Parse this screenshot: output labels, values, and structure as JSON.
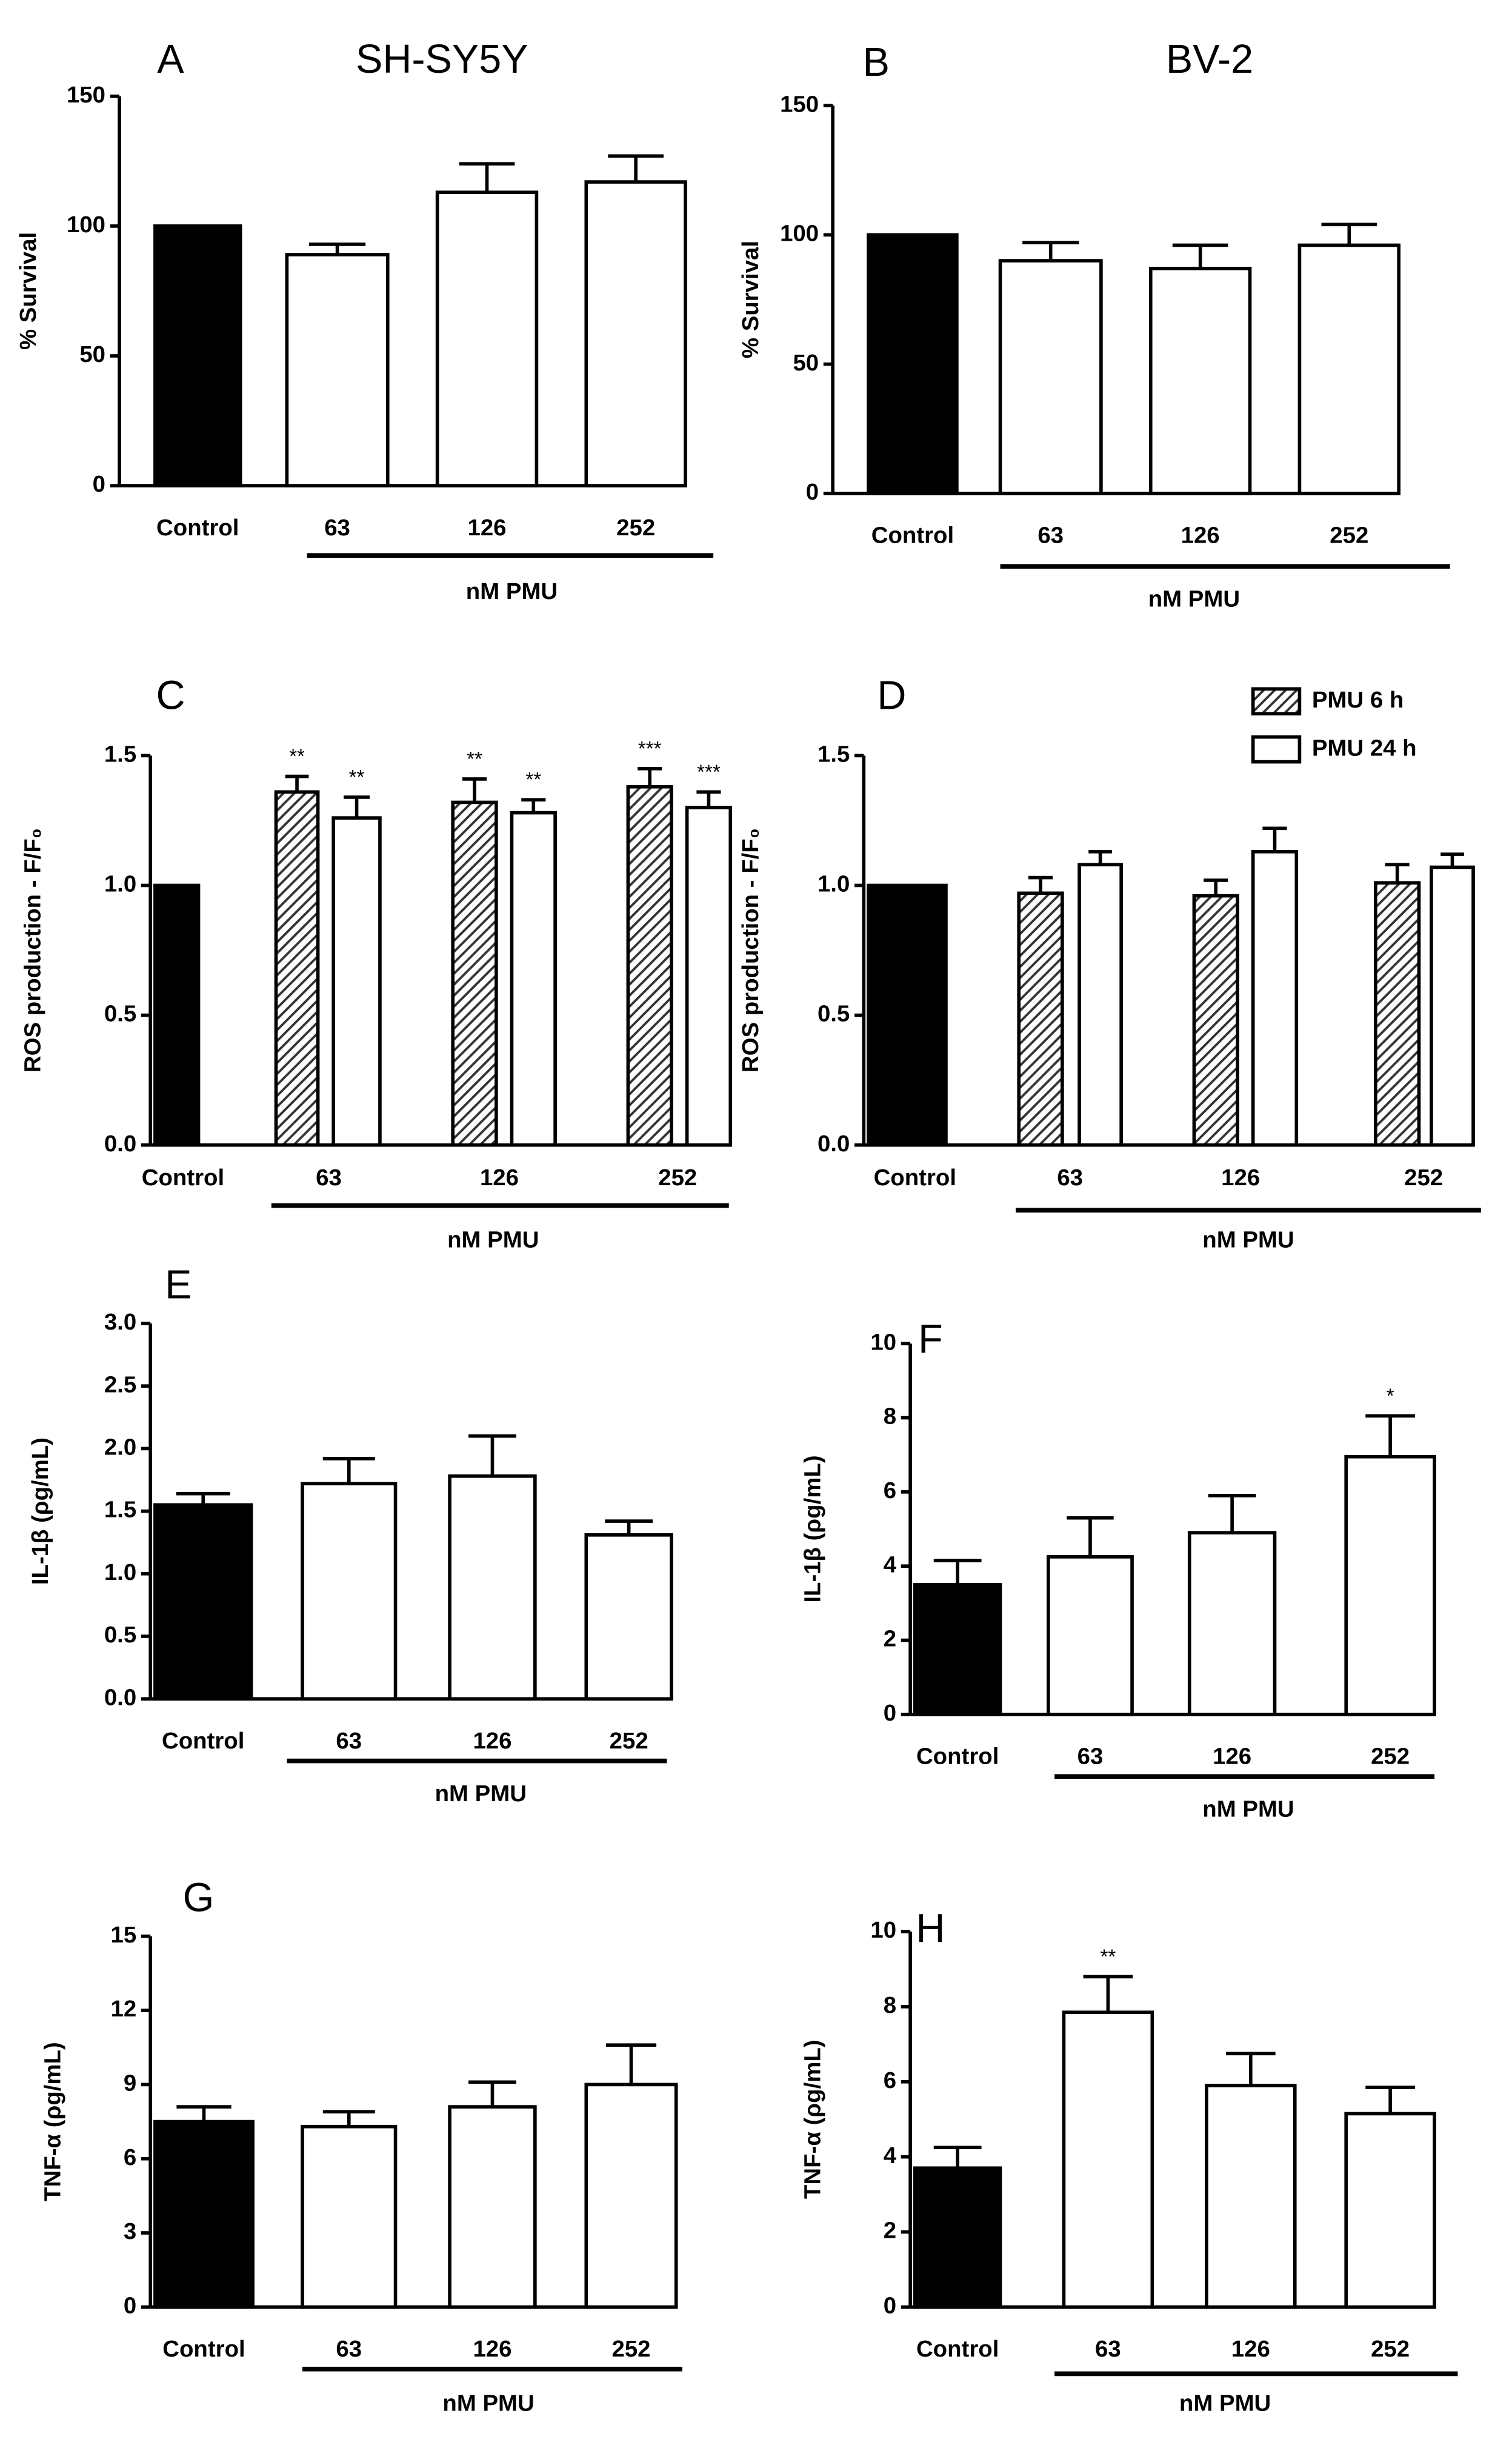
{
  "chart_data": [
    {
      "type": "bar",
      "panel": "A",
      "title": "SH-SY5Y",
      "ylabel": "% Survival",
      "categories": [
        "Control",
        "63",
        "126",
        "252"
      ],
      "group_label": "nM PMU",
      "values": [
        100,
        89,
        113,
        117
      ],
      "errors": [
        0,
        4,
        11,
        10
      ],
      "colors": [
        "#000000",
        "#ffffff",
        "#ffffff",
        "#ffffff"
      ],
      "ylim": [
        0,
        150
      ],
      "yticks": [
        0,
        50,
        100,
        150
      ]
    },
    {
      "type": "bar",
      "panel": "B",
      "title": "BV-2",
      "ylabel": "% Survival",
      "categories": [
        "Control",
        "63",
        "126",
        "252"
      ],
      "group_label": "nM PMU",
      "values": [
        100,
        90,
        87,
        96
      ],
      "errors": [
        0,
        7,
        9,
        8
      ],
      "colors": [
        "#000000",
        "#ffffff",
        "#ffffff",
        "#ffffff"
      ],
      "ylim": [
        0,
        150
      ],
      "yticks": [
        0,
        50,
        100,
        150
      ]
    },
    {
      "type": "grouped_bar",
      "panel": "C",
      "ylabel": "ROS production - F/F₀",
      "categories": [
        "Control",
        "63",
        "126",
        "252"
      ],
      "group_label": "nM PMU",
      "control": {
        "value": 1.0,
        "color": "#000000"
      },
      "series": [
        {
          "color": "#333333",
          "pattern": "hatch",
          "values": [
            null,
            1.36,
            1.32,
            1.38
          ],
          "errors": [
            null,
            0.06,
            0.09,
            0.07
          ],
          "annotations": [
            null,
            "**",
            "**",
            "***"
          ]
        },
        {
          "color": "#ffffff",
          "values": [
            null,
            1.26,
            1.28,
            1.3
          ],
          "errors": [
            null,
            0.08,
            0.05,
            0.06
          ],
          "annotations": [
            null,
            "**",
            "**",
            "***"
          ]
        }
      ],
      "ylim": [
        0,
        1.5
      ],
      "yticks": [
        {
          "value": 0,
          "label": "0.0"
        },
        {
          "value": 0.5,
          "label": "0.5"
        },
        {
          "value": 1,
          "label": "1.0"
        },
        {
          "value": 1.5,
          "label": "1.5"
        }
      ]
    },
    {
      "type": "grouped_bar",
      "panel": "D",
      "ylabel": "ROS production - F/F₀",
      "categories": [
        "Control",
        "63",
        "126",
        "252"
      ],
      "group_label": "nM PMU",
      "control": {
        "value": 1.0,
        "color": "#000000"
      },
      "legend": "top-right",
      "series": [
        {
          "name": "PMU 6 h",
          "color": "#333333",
          "pattern": "hatch",
          "values": [
            null,
            0.97,
            0.96,
            1.01
          ],
          "errors": [
            null,
            0.06,
            0.06,
            0.07
          ]
        },
        {
          "name": "PMU 24 h",
          "color": "#ffffff",
          "values": [
            null,
            1.08,
            1.13,
            1.07
          ],
          "errors": [
            null,
            0.05,
            0.09,
            0.05
          ]
        }
      ],
      "ylim": [
        0,
        1.5
      ],
      "yticks": [
        {
          "value": 0,
          "label": "0.0"
        },
        {
          "value": 0.5,
          "label": "0.5"
        },
        {
          "value": 1,
          "label": "1.0"
        },
        {
          "value": 1.5,
          "label": "1.5"
        }
      ]
    },
    {
      "type": "bar",
      "panel": "E",
      "ylabel": "IL-1β (ρg/mL)",
      "categories": [
        "Control",
        "63",
        "126",
        "252"
      ],
      "group_label": "nM PMU",
      "values": [
        1.55,
        1.72,
        1.78,
        1.31
      ],
      "errors": [
        0.09,
        0.2,
        0.32,
        0.11
      ],
      "colors": [
        "#000000",
        "#ffffff",
        "#ffffff",
        "#ffffff"
      ],
      "ylim": [
        0,
        3
      ],
      "yticks": [
        {
          "value": 0,
          "label": "0.0"
        },
        {
          "value": 0.5,
          "label": "0.5"
        },
        {
          "value": 1,
          "label": "1.0"
        },
        {
          "value": 1.5,
          "label": "1.5"
        },
        {
          "value": 2,
          "label": "2.0"
        },
        {
          "value": 2.5,
          "label": "2.5"
        },
        {
          "value": 3,
          "label": "3.0"
        }
      ]
    },
    {
      "type": "bar",
      "panel": "F",
      "ylabel": "IL-1β (ρg/mL)",
      "categories": [
        "Control",
        "63",
        "126",
        "252"
      ],
      "group_label": "nM PMU",
      "values": [
        3.5,
        4.25,
        4.9,
        6.95
      ],
      "errors": [
        0.65,
        1.05,
        1.0,
        1.1
      ],
      "colors": [
        "#000000",
        "#ffffff",
        "#ffffff",
        "#ffffff"
      ],
      "annotations": [
        null,
        null,
        null,
        "*"
      ],
      "ylim": [
        0,
        10
      ],
      "yticks": [
        0,
        2,
        4,
        6,
        8,
        10
      ]
    },
    {
      "type": "bar",
      "panel": "G",
      "ylabel": "TNF-α (ρg/mL)",
      "categories": [
        "Control",
        "63",
        "126",
        "252"
      ],
      "group_label": "nM PMU",
      "values": [
        7.5,
        7.3,
        8.1,
        9.0
      ],
      "errors": [
        0.6,
        0.6,
        1.0,
        1.6
      ],
      "colors": [
        "#000000",
        "#ffffff",
        "#ffffff",
        "#ffffff"
      ],
      "ylim": [
        0,
        15
      ],
      "yticks": [
        0,
        3,
        6,
        9,
        12,
        15
      ]
    },
    {
      "type": "bar",
      "panel": "H",
      "ylabel": "TNF-α (ρg/mL)",
      "categories": [
        "Control",
        "63",
        "126",
        "252"
      ],
      "group_label": "nM PMU",
      "values": [
        3.7,
        7.85,
        5.9,
        5.15
      ],
      "errors": [
        0.55,
        0.95,
        0.85,
        0.7
      ],
      "colors": [
        "#000000",
        "#ffffff",
        "#ffffff",
        "#ffffff"
      ],
      "annotations": [
        null,
        "**",
        null,
        null
      ],
      "ylim": [
        0,
        10
      ],
      "yticks": [
        0,
        2,
        4,
        6,
        8,
        10
      ]
    }
  ]
}
